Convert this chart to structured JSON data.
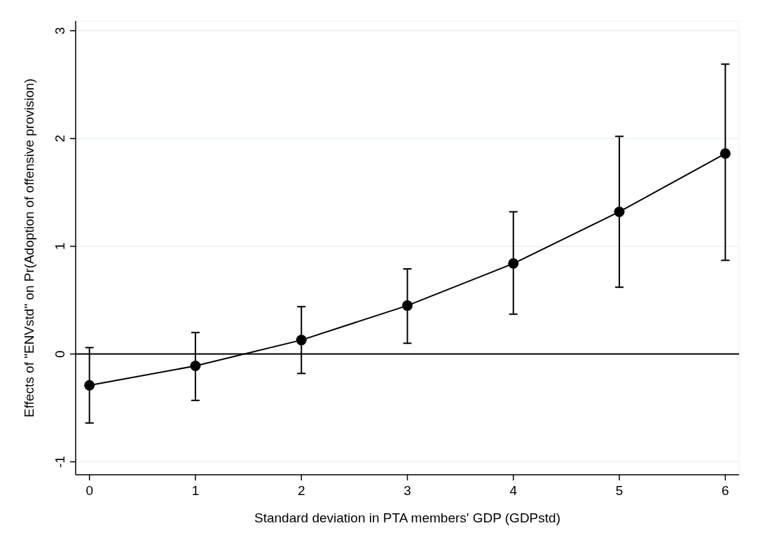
{
  "chart_data": {
    "type": "line",
    "xlabel": "Standard deviation in PTA members' GDP (GDPstd)",
    "ylabel": "Effects of \"ENVstd\" on Pr(Adoption of offensive provision)",
    "x": [
      0,
      1,
      2,
      3,
      4,
      5,
      6
    ],
    "series": [
      {
        "color": "#000000",
        "values": [
          -0.29,
          -0.11,
          0.13,
          0.45,
          0.84,
          1.32,
          1.86
        ],
        "errors": [
          [
            -0.64,
            0.06
          ],
          [
            -0.43,
            0.2
          ],
          [
            -0.18,
            0.44
          ],
          [
            0.1,
            0.79
          ],
          [
            0.37,
            1.32
          ],
          [
            0.62,
            2.02
          ],
          [
            0.87,
            2.69
          ]
        ]
      }
    ],
    "xlim": [
      -0.13,
      6.13
    ],
    "xticks": [
      0,
      1,
      2,
      3,
      4,
      5,
      6
    ],
    "ylim": [
      -1.12,
      3.09
    ],
    "yticks": [
      -1,
      0,
      1,
      2,
      3
    ],
    "ref_lines": [
      {
        "axis": "y",
        "value": 0,
        "color": "#000000"
      }
    ],
    "grid": "y",
    "marker": "circle",
    "line_style": "solid"
  }
}
